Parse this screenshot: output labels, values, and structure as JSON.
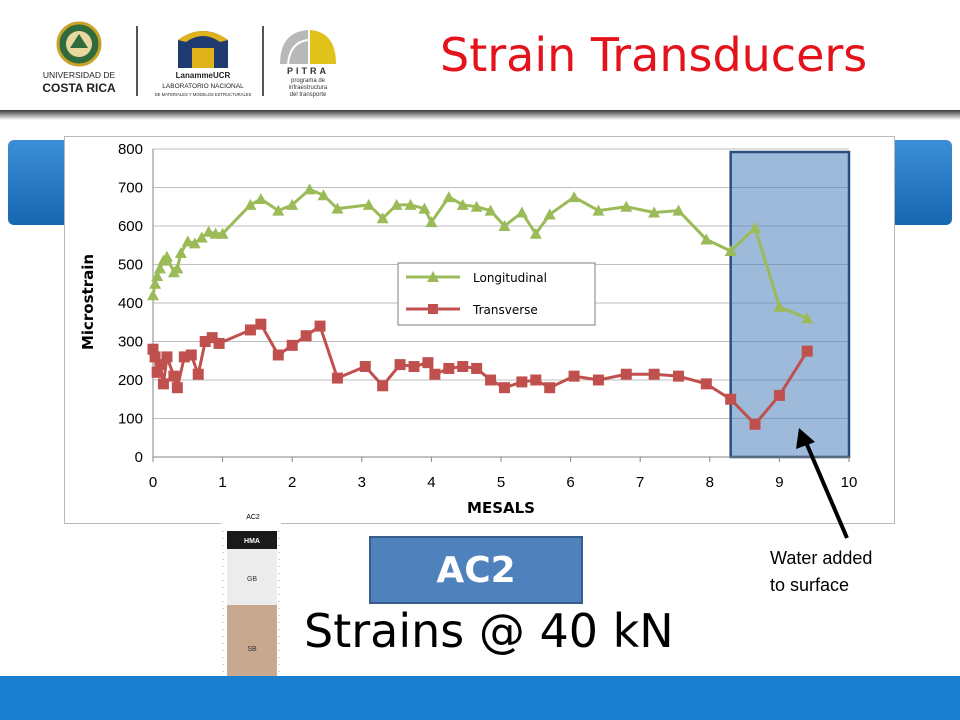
{
  "header": {
    "title": "Strain Transducers",
    "logos": [
      {
        "name": "ucr-logo",
        "lines": [
          "UNIVERSIDAD DE",
          "COSTA RICA"
        ]
      },
      {
        "name": "lanammeucr-logo",
        "lines": [
          "LanammeUCR",
          "LABORATORIO NACIONAL",
          "DE MATERIALES Y MODELOS ESTRUCTURALES"
        ]
      },
      {
        "name": "pitra-logo",
        "lines": [
          "PITRA",
          "programa de",
          "infraestructura",
          "del transporte"
        ]
      }
    ],
    "title_color": "#e3121b"
  },
  "chart_data": {
    "type": "line",
    "title": "",
    "xlabel": "MESALS",
    "ylabel": "Microstrain",
    "xlim": [
      0,
      10
    ],
    "ylim": [
      0,
      800
    ],
    "xticks": [
      0,
      1,
      2,
      3,
      4,
      5,
      6,
      7,
      8,
      9,
      10
    ],
    "yticks": [
      0,
      100,
      200,
      300,
      400,
      500,
      600,
      700,
      800
    ],
    "grid": "horizontal",
    "legend_position": "center-right",
    "series": [
      {
        "name": "Longitudinal",
        "color": "#9bbb59",
        "marker": "triangle",
        "x": [
          0.0,
          0.03,
          0.06,
          0.1,
          0.15,
          0.2,
          0.3,
          0.35,
          0.4,
          0.5,
          0.6,
          0.7,
          0.8,
          0.9,
          1.0,
          1.4,
          1.55,
          1.8,
          2.0,
          2.25,
          2.45,
          2.65,
          3.1,
          3.3,
          3.5,
          3.7,
          3.9,
          4.0,
          4.25,
          4.45,
          4.65,
          4.85,
          5.05,
          5.3,
          5.5,
          5.7,
          6.05,
          6.4,
          6.8,
          7.2,
          7.55,
          7.95,
          8.3,
          8.65,
          9.0,
          9.4
        ],
        "values": [
          420,
          450,
          470,
          490,
          510,
          520,
          480,
          490,
          530,
          560,
          555,
          570,
          585,
          580,
          580,
          655,
          670,
          640,
          655,
          695,
          680,
          645,
          655,
          620,
          655,
          655,
          645,
          610,
          675,
          655,
          650,
          640,
          600,
          635,
          580,
          630,
          675,
          640,
          650,
          635,
          640,
          565,
          535,
          595,
          390,
          360
        ]
      },
      {
        "name": "Transverse",
        "color": "#c0504d",
        "marker": "square",
        "x": [
          0.0,
          0.03,
          0.06,
          0.1,
          0.15,
          0.2,
          0.3,
          0.35,
          0.45,
          0.55,
          0.65,
          0.75,
          0.85,
          0.95,
          1.4,
          1.55,
          1.8,
          2.0,
          2.2,
          2.4,
          2.65,
          3.05,
          3.3,
          3.55,
          3.75,
          3.95,
          4.05,
          4.25,
          4.45,
          4.65,
          4.85,
          5.05,
          5.3,
          5.5,
          5.7,
          6.05,
          6.4,
          6.8,
          7.2,
          7.55,
          7.95,
          8.3,
          8.65,
          9.0,
          9.4
        ],
        "values": [
          280,
          260,
          220,
          240,
          190,
          260,
          210,
          180,
          260,
          265,
          215,
          300,
          310,
          295,
          330,
          345,
          265,
          290,
          315,
          340,
          205,
          235,
          185,
          240,
          235,
          245,
          215,
          230,
          235,
          230,
          200,
          180,
          195,
          200,
          180,
          210,
          200,
          215,
          215,
          210,
          190,
          150,
          85,
          160,
          275
        ]
      }
    ],
    "highlight": {
      "x_range": [
        8.3,
        10.0
      ],
      "y_range": [
        0,
        800
      ],
      "color": "#4f81bd"
    }
  },
  "annotation": {
    "text_line1": "Water added",
    "text_line2": "to surface"
  },
  "section_label": "AC2",
  "caption": "Strains @ 40 kN",
  "pavement_section": {
    "title": "AC2",
    "layers": [
      "HMA",
      "GB",
      "SB"
    ]
  }
}
